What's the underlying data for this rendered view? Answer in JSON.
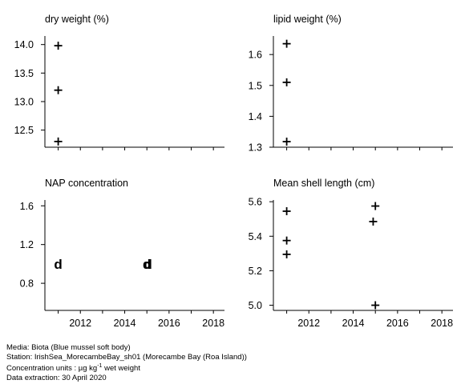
{
  "chart_data": [
    {
      "type": "scatter",
      "title": "dry weight (%)",
      "xlim": [
        2010.4,
        2018.5
      ],
      "ylim": [
        12.2,
        14.15
      ],
      "xticks": [],
      "yticks": [
        "12.5",
        "13.0",
        "13.5",
        "14.0"
      ],
      "series": [
        {
          "marker": "+",
          "points": [
            [
              2011.0,
              13.98
            ],
            [
              2011.0,
              13.2
            ],
            [
              2011.0,
              12.3
            ]
          ]
        }
      ]
    },
    {
      "type": "scatter",
      "title": "lipid weight (%)",
      "xlim": [
        2010.4,
        2018.5
      ],
      "ylim": [
        1.3,
        1.66
      ],
      "xticks": [],
      "yticks": [
        "1.3",
        "1.4",
        "1.5",
        "1.6"
      ],
      "series": [
        {
          "marker": "+",
          "points": [
            [
              2011.0,
              1.635
            ],
            [
              2011.0,
              1.51
            ],
            [
              2011.0,
              1.318
            ]
          ]
        }
      ]
    },
    {
      "type": "scatter",
      "title": "NAP concentration",
      "xlim": [
        2010.4,
        2018.5
      ],
      "ylim": [
        0.52,
        1.66
      ],
      "xticks": [
        "2012",
        "2014",
        "2016",
        "2018"
      ],
      "yticks": [
        "0.8",
        "1.2",
        "1.6"
      ],
      "series": [
        {
          "marker": "d",
          "points": [
            [
              2011.0,
              1.0
            ],
            [
              2015.0,
              1.0
            ],
            [
              2015.05,
              1.0
            ]
          ]
        }
      ]
    },
    {
      "type": "scatter",
      "title": "Mean shell length (cm)",
      "xlim": [
        2010.4,
        2018.5
      ],
      "ylim": [
        4.97,
        5.61
      ],
      "xticks": [
        "2012",
        "2014",
        "2016",
        "2018"
      ],
      "yticks": [
        "5.0",
        "5.2",
        "5.4",
        "5.6"
      ],
      "series": [
        {
          "marker": "+",
          "points": [
            [
              2011.0,
              5.545
            ],
            [
              2011.0,
              5.375
            ],
            [
              2011.0,
              5.295
            ],
            [
              2014.9,
              5.485
            ],
            [
              2015.0,
              5.575
            ],
            [
              2015.0,
              5.0
            ]
          ]
        }
      ]
    }
  ],
  "footer": {
    "media": "Media: Biota (Blue mussel soft body)",
    "station": "Station: IrishSea_MorecambeBay_sh01 (Morecambe Bay (Roa Island))",
    "units_prefix": "Concentration units : µg kg",
    "units_sup": "-1",
    "units_suffix": " wet weight",
    "extraction": "Data extraction: 30 April 2020"
  }
}
